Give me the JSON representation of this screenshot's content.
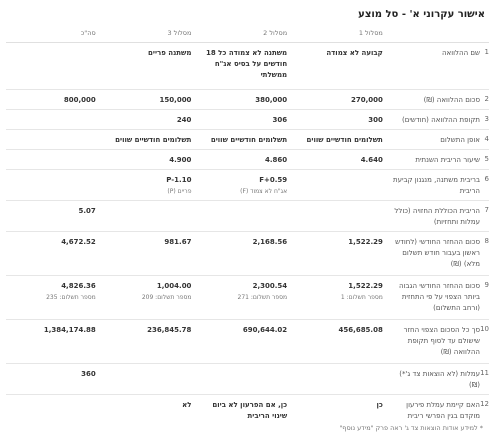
{
  "title": "אישור עקרוני א' - סל מוצע",
  "columns": [
    "מסלול 1",
    "מסלול 2",
    "מסלול 3",
    "סה\"כ"
  ],
  "rows": [
    {
      "num": "1",
      "label": "שם ההלוואה",
      "h": 47,
      "vals": [
        {
          "main": "קבועה לא צמודה",
          "sub": ""
        },
        {
          "main": "משתנה לא צמודה כל 18 חודשים על בסיס אג\"ח ממשלתי",
          "sub": ""
        },
        {
          "main": "משתנה פריים",
          "sub": ""
        },
        {
          "main": "",
          "sub": ""
        }
      ]
    },
    {
      "num": "2",
      "label": "סכום ההלוואה (₪)",
      "h": 20,
      "vals": [
        {
          "main": "270,000",
          "sub": ""
        },
        {
          "main": "380,000",
          "sub": ""
        },
        {
          "main": "150,000",
          "sub": ""
        },
        {
          "main": "800,000",
          "sub": ""
        }
      ]
    },
    {
      "num": "3",
      "label": "תקופת ההלוואה (חודשים)",
      "h": 20,
      "vals": [
        {
          "main": "300",
          "sub": ""
        },
        {
          "main": "306",
          "sub": ""
        },
        {
          "main": "240",
          "sub": ""
        },
        {
          "main": "",
          "sub": ""
        }
      ]
    },
    {
      "num": "4",
      "label": "אופן התשלום",
      "h": 20,
      "vals": [
        {
          "main": "תשלומים חודשיים שווים",
          "sub": ""
        },
        {
          "main": "תשלומים חודשיים שווים",
          "sub": ""
        },
        {
          "main": "תשלומים חודשיים שווים",
          "sub": ""
        },
        {
          "main": "",
          "sub": ""
        }
      ]
    },
    {
      "num": "5",
      "label": "שיעור הריבית השנתית",
      "h": 20,
      "vals": [
        {
          "main": "4.640",
          "sub": ""
        },
        {
          "main": "4.860",
          "sub": ""
        },
        {
          "main": "4.900",
          "sub": ""
        },
        {
          "main": "",
          "sub": ""
        }
      ]
    },
    {
      "num": "6",
      "label": "בריבית משתנה, מנגנון קביעת הריבית",
      "h": 31,
      "vals": [
        {
          "main": "",
          "sub": ""
        },
        {
          "main": "F+0.59",
          "sub": "אג\"ח לא צמוד (F)"
        },
        {
          "main": "P-1.10",
          "sub": "פריים (P)"
        },
        {
          "main": "",
          "sub": ""
        }
      ]
    },
    {
      "num": "7",
      "label": "הריבית הכוללת החזויה (כולל עמלות ותחזיות)",
      "h": 31,
      "vals": [
        {
          "main": "",
          "sub": ""
        },
        {
          "main": "",
          "sub": ""
        },
        {
          "main": "",
          "sub": ""
        },
        {
          "main": "5.07",
          "sub": ""
        }
      ]
    },
    {
      "num": "8",
      "label": "סכום ההחזר החודשי (לחודש ראשון בעבור חודש תשלום מלא) (₪)",
      "h": 44,
      "vals": [
        {
          "main": "1,522.29",
          "sub": ""
        },
        {
          "main": "2,168.56",
          "sub": ""
        },
        {
          "main": "981.67",
          "sub": ""
        },
        {
          "main": "4,672.52",
          "sub": ""
        }
      ]
    },
    {
      "num": "9",
      "label": "סכום ההחזר החודשי הגבוה ביותר הצפוי על פי התחזית (ורחב התשלום)",
      "h": 44,
      "vals": [
        {
          "main": "1,522.29",
          "sub": "מספר תשלום: 1"
        },
        {
          "main": "2,300.54",
          "sub": "מספר תשלום: 271"
        },
        {
          "main": "1,004.00",
          "sub": "מספר תשלום: 209"
        },
        {
          "main": "4,826.36",
          "sub": "מספר תשלום: 235"
        }
      ]
    },
    {
      "num": "10",
      "label": "סך כל הסכום הצפוי החזר שישולם עד לסוף תקופת ההלוואה (₪)",
      "h": 44,
      "vals": [
        {
          "main": "456,685.08",
          "sub": ""
        },
        {
          "main": "690,644.02",
          "sub": ""
        },
        {
          "main": "236,845.78",
          "sub": ""
        },
        {
          "main": "1,384,174.88",
          "sub": ""
        }
      ]
    },
    {
      "num": "11",
      "label": "עמלות (לא הוצאות צד ג'*) (₪)",
      "h": 31,
      "vals": [
        {
          "main": "",
          "sub": ""
        },
        {
          "main": "",
          "sub": ""
        },
        {
          "main": "",
          "sub": ""
        },
        {
          "main": "360",
          "sub": ""
        }
      ]
    },
    {
      "num": "12",
      "label": "האם קיימת עמלת פירעון מוקדם בגין הפרשי ריבית",
      "h": 27,
      "vals": [
        {
          "main": "כן",
          "sub": ""
        },
        {
          "main": "כן, אם הפרעון לא ביום שינוי הריבית",
          "sub": ""
        },
        {
          "main": "לא",
          "sub": ""
        },
        {
          "main": "",
          "sub": ""
        }
      ]
    }
  ],
  "footnote": "* למידע אודות הוצאות צד ג' ראה פרק \"מידע נוסף\""
}
